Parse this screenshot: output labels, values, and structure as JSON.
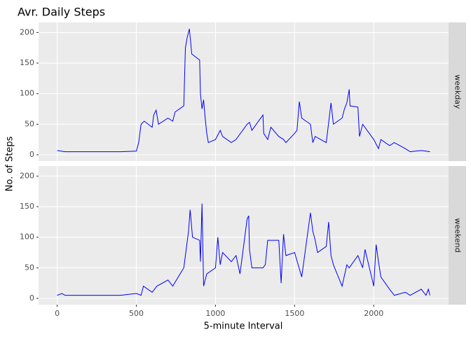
{
  "chart_data": {
    "type": "line",
    "title": "Avr. Daily Steps",
    "x_label": "5-minute Interval",
    "y_label": "No. of Steps",
    "xlim": [
      -117.75,
      2472.75
    ],
    "xticks": [
      0,
      500,
      1000,
      1500,
      2000
    ],
    "ylim": [
      -10.3,
      216.5
    ],
    "yticks": [
      0,
      50,
      100,
      150,
      200
    ],
    "grid": true,
    "series": [
      {
        "name": "weekday",
        "color": "#0000ff",
        "x": [
          0,
          50,
          100,
          200,
          300,
          400,
          500,
          515,
          530,
          550,
          600,
          610,
          625,
          640,
          700,
          730,
          745,
          800,
          810,
          820,
          835,
          845,
          850,
          900,
          905,
          915,
          925,
          935,
          945,
          955,
          1000,
          1030,
          1045,
          1100,
          1130,
          1200,
          1215,
          1230,
          1300,
          1305,
          1330,
          1350,
          1400,
          1430,
          1445,
          1500,
          1515,
          1530,
          1545,
          1600,
          1615,
          1630,
          1700,
          1730,
          1745,
          1800,
          1815,
          1830,
          1845,
          1850,
          1900,
          1910,
          1930,
          2000,
          2030,
          2045,
          2100,
          2130,
          2200,
          2230,
          2300,
          2355
        ],
        "values": [
          7,
          5,
          5,
          5,
          5,
          5,
          6,
          20,
          50,
          55,
          45,
          65,
          73,
          50,
          60,
          55,
          70,
          80,
          175,
          190,
          206,
          180,
          165,
          155,
          100,
          75,
          90,
          60,
          35,
          20,
          25,
          40,
          30,
          20,
          25,
          50,
          53,
          40,
          65,
          35,
          25,
          45,
          30,
          25,
          20,
          35,
          40,
          87,
          60,
          50,
          20,
          30,
          20,
          85,
          50,
          60,
          75,
          85,
          107,
          80,
          78,
          30,
          50,
          25,
          10,
          25,
          15,
          20,
          10,
          5,
          7,
          5
        ]
      },
      {
        "name": "weekend",
        "color": "#0000ff",
        "x": [
          0,
          30,
          50,
          200,
          400,
          500,
          530,
          545,
          600,
          630,
          700,
          730,
          800,
          830,
          840,
          855,
          900,
          905,
          915,
          920,
          925,
          945,
          1000,
          1015,
          1030,
          1045,
          1100,
          1130,
          1155,
          1200,
          1210,
          1215,
          1230,
          1300,
          1315,
          1330,
          1400,
          1415,
          1430,
          1445,
          1500,
          1545,
          1600,
          1615,
          1630,
          1645,
          1700,
          1715,
          1730,
          1745,
          1800,
          1830,
          1845,
          1900,
          1930,
          1945,
          2000,
          2015,
          2030,
          2045,
          2100,
          2130,
          2200,
          2230,
          2300,
          2330,
          2345,
          2355
        ],
        "values": [
          5,
          8,
          5,
          5,
          5,
          8,
          5,
          20,
          10,
          20,
          30,
          20,
          50,
          110,
          145,
          100,
          95,
          60,
          155,
          90,
          20,
          40,
          50,
          100,
          55,
          75,
          60,
          70,
          40,
          130,
          135,
          80,
          50,
          50,
          55,
          95,
          95,
          25,
          105,
          70,
          75,
          35,
          140,
          110,
          95,
          75,
          85,
          125,
          70,
          55,
          20,
          55,
          50,
          70,
          50,
          80,
          20,
          88,
          60,
          35,
          15,
          5,
          10,
          5,
          15,
          5,
          15,
          5
        ]
      }
    ]
  }
}
